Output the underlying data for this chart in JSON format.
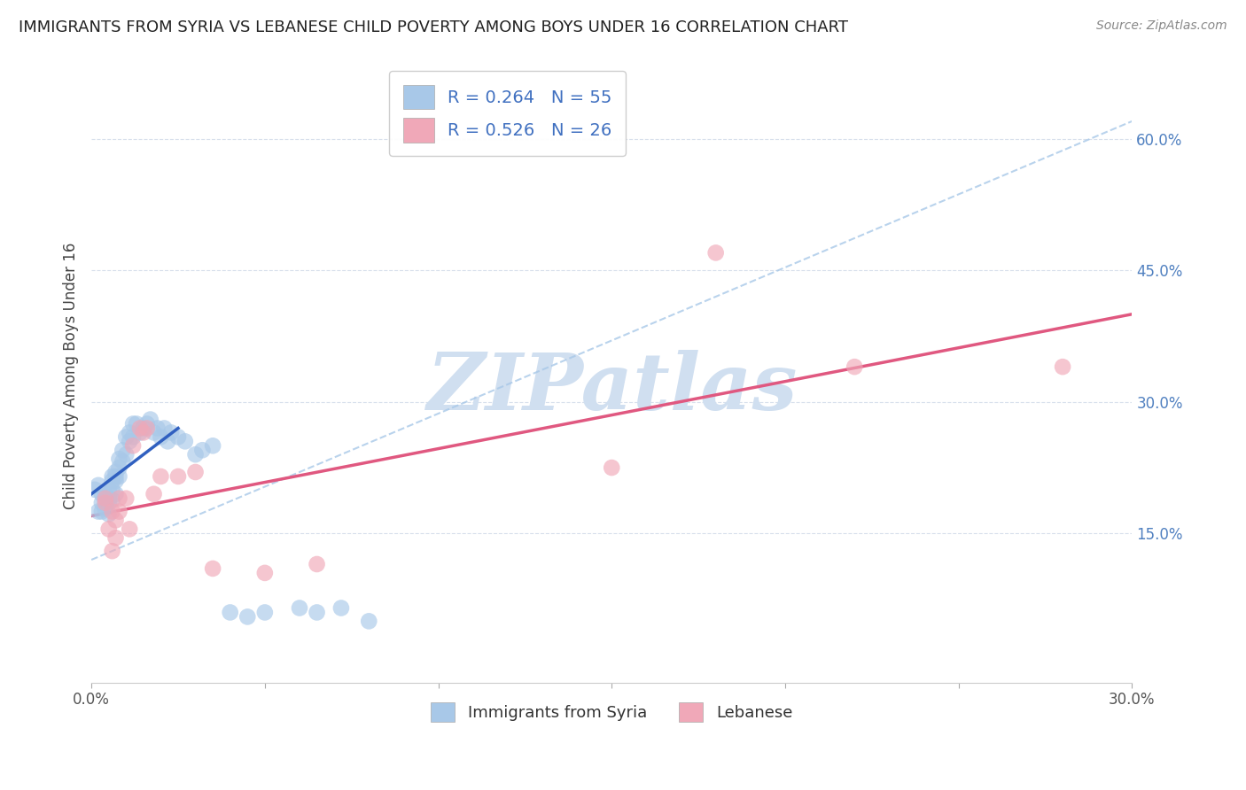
{
  "title": "IMMIGRANTS FROM SYRIA VS LEBANESE CHILD POVERTY AMONG BOYS UNDER 16 CORRELATION CHART",
  "source": "Source: ZipAtlas.com",
  "ylabel": "Child Poverty Among Boys Under 16",
  "legend_label1": "Immigrants from Syria",
  "legend_label2": "Lebanese",
  "r1": 0.264,
  "n1": 55,
  "r2": 0.526,
  "n2": 26,
  "xlim": [
    0.0,
    0.3
  ],
  "ylim": [
    -0.02,
    0.68
  ],
  "xtick_pos": [
    0.0,
    0.05,
    0.1,
    0.15,
    0.2,
    0.25,
    0.3
  ],
  "xtick_labels": [
    "0.0%",
    "",
    "",
    "",
    "",
    "",
    "30.0%"
  ],
  "ytick_pos": [
    0.0,
    0.15,
    0.3,
    0.45,
    0.6
  ],
  "ytick_labels": [
    "",
    "15.0%",
    "30.0%",
    "45.0%",
    "60.0%"
  ],
  "color_syria": "#a8c8e8",
  "color_lebanese": "#f0a8b8",
  "color_syria_line": "#3060c0",
  "color_lebanese_line": "#e05880",
  "color_dashed": "#a8c8e8",
  "background_color": "#ffffff",
  "grid_color": "#d8e0ec",
  "watermark": "ZIPatlas",
  "watermark_color": "#d0dff0",
  "syria_x": [
    0.001,
    0.002,
    0.002,
    0.003,
    0.003,
    0.003,
    0.004,
    0.004,
    0.004,
    0.005,
    0.005,
    0.005,
    0.005,
    0.006,
    0.006,
    0.006,
    0.006,
    0.007,
    0.007,
    0.007,
    0.007,
    0.008,
    0.008,
    0.008,
    0.009,
    0.009,
    0.01,
    0.01,
    0.011,
    0.011,
    0.012,
    0.012,
    0.013,
    0.014,
    0.015,
    0.016,
    0.017,
    0.018,
    0.019,
    0.02,
    0.021,
    0.022,
    0.023,
    0.025,
    0.027,
    0.03,
    0.032,
    0.035,
    0.04,
    0.045,
    0.05,
    0.06,
    0.065,
    0.072,
    0.08
  ],
  "syria_y": [
    0.2,
    0.175,
    0.205,
    0.185,
    0.195,
    0.175,
    0.185,
    0.195,
    0.178,
    0.19,
    0.2,
    0.185,
    0.172,
    0.2,
    0.21,
    0.215,
    0.188,
    0.21,
    0.22,
    0.215,
    0.195,
    0.235,
    0.225,
    0.215,
    0.232,
    0.245,
    0.26,
    0.24,
    0.265,
    0.255,
    0.275,
    0.26,
    0.275,
    0.265,
    0.27,
    0.275,
    0.28,
    0.265,
    0.27,
    0.26,
    0.27,
    0.255,
    0.265,
    0.26,
    0.255,
    0.24,
    0.245,
    0.25,
    0.06,
    0.055,
    0.06,
    0.065,
    0.06,
    0.065,
    0.05
  ],
  "lebanese_x": [
    0.004,
    0.004,
    0.005,
    0.006,
    0.006,
    0.007,
    0.007,
    0.008,
    0.008,
    0.01,
    0.011,
    0.012,
    0.014,
    0.015,
    0.016,
    0.018,
    0.02,
    0.025,
    0.03,
    0.035,
    0.05,
    0.065,
    0.15,
    0.18,
    0.22,
    0.28
  ],
  "lebanese_y": [
    0.185,
    0.19,
    0.155,
    0.175,
    0.13,
    0.145,
    0.165,
    0.175,
    0.19,
    0.19,
    0.155,
    0.25,
    0.27,
    0.265,
    0.27,
    0.195,
    0.215,
    0.215,
    0.22,
    0.11,
    0.105,
    0.115,
    0.225,
    0.47,
    0.34,
    0.34
  ],
  "syria_line_x": [
    0.0,
    0.025
  ],
  "syria_line_y": [
    0.195,
    0.27
  ],
  "dashed_line_x0": 0.0,
  "dashed_line_y0": 0.12,
  "dashed_line_x1": 0.3,
  "dashed_line_y1": 0.62,
  "pink_line_x0": 0.0,
  "pink_line_y0": 0.17,
  "pink_line_x1": 0.3,
  "pink_line_y1": 0.4
}
